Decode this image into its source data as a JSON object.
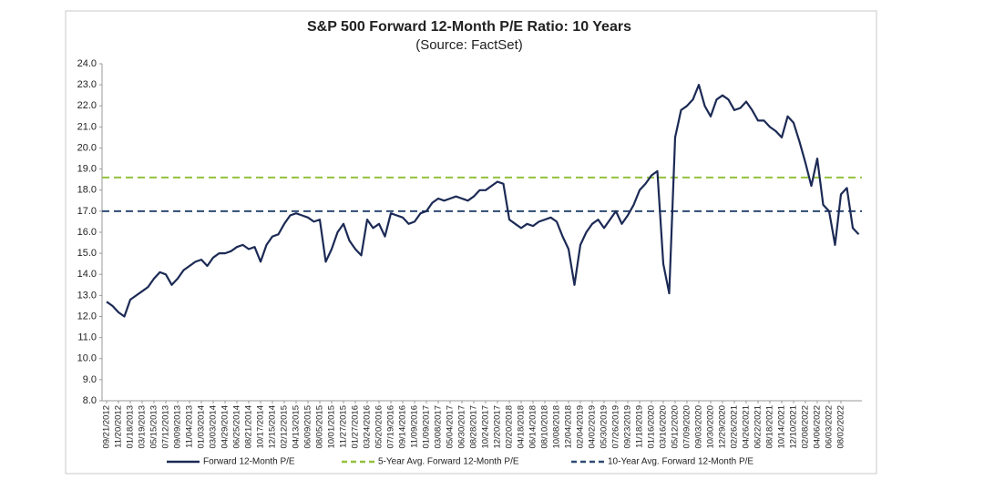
{
  "chart_data": {
    "type": "line",
    "title": "S&P 500 Forward 12-Month P/E Ratio: 10 Years",
    "subtitle": "(Source: FactSet)",
    "categories": [
      "09/21/2012",
      null,
      "11/20/2012",
      null,
      "01/18/2013",
      null,
      "03/19/2013",
      null,
      "05/15/2013",
      null,
      "07/12/2013",
      null,
      "09/09/2013",
      null,
      "11/04/2013",
      null,
      "01/03/2014",
      null,
      "03/03/2014",
      null,
      "04/29/2014",
      null,
      "06/25/2014",
      null,
      "08/21/2014",
      null,
      "10/17/2014",
      null,
      "12/15/2014",
      null,
      "02/12/2015",
      null,
      "04/13/2015",
      null,
      "06/09/2015",
      null,
      "08/05/2015",
      null,
      "10/01/2015",
      null,
      "11/27/2015",
      null,
      "01/27/2016",
      null,
      "03/24/2016",
      null,
      "05/20/2016",
      null,
      "07/19/2016",
      null,
      "09/14/2016",
      null,
      "11/09/2016",
      null,
      "01/09/2017",
      null,
      "03/08/2017",
      null,
      "05/04/2017",
      null,
      "06/30/2017",
      null,
      "08/28/2017",
      null,
      "10/24/2017",
      null,
      "12/20/2017",
      null,
      "02/20/2018",
      null,
      "04/18/2018",
      null,
      "06/14/2018",
      null,
      "08/10/2018",
      null,
      "10/08/2018",
      null,
      "12/04/2018",
      null,
      "02/04/2019",
      null,
      "04/02/2019",
      null,
      "05/30/2019",
      null,
      "07/26/2019",
      null,
      "09/23/2019",
      null,
      "11/18/2019",
      null,
      "01/16/2020",
      null,
      "03/16/2020",
      null,
      "05/12/2020",
      null,
      "07/09/2020",
      null,
      "09/03/2020",
      null,
      "10/30/2020",
      null,
      "12/29/2020",
      null,
      "02/26/2021",
      null,
      "04/26/2021",
      null,
      "06/22/2021",
      null,
      "08/18/2021",
      null,
      "10/14/2021",
      null,
      "12/10/2021",
      null,
      "02/08/2022",
      null,
      "04/06/2022",
      null,
      "06/03/2022",
      null,
      "08/02/2022",
      null,
      null,
      null
    ],
    "series": [
      {
        "name": "Forward 12-Month P/E",
        "color": "#1c2a55",
        "values": [
          12.7,
          12.5,
          12.2,
          12.0,
          12.8,
          13.0,
          13.2,
          13.4,
          13.8,
          14.1,
          14.0,
          13.5,
          13.8,
          14.2,
          14.4,
          14.6,
          14.7,
          14.4,
          14.8,
          15.0,
          15.0,
          15.1,
          15.3,
          15.4,
          15.2,
          15.3,
          14.6,
          15.4,
          15.8,
          15.9,
          16.4,
          16.8,
          16.9,
          16.8,
          16.7,
          16.5,
          16.6,
          14.6,
          15.2,
          16.0,
          16.4,
          15.6,
          15.2,
          14.9,
          16.6,
          16.2,
          16.4,
          15.8,
          16.9,
          16.8,
          16.7,
          16.4,
          16.5,
          16.9,
          17.0,
          17.4,
          17.6,
          17.5,
          17.6,
          17.7,
          17.6,
          17.5,
          17.7,
          18.0,
          18.0,
          18.2,
          18.4,
          18.3,
          16.6,
          16.4,
          16.2,
          16.4,
          16.3,
          16.5,
          16.6,
          16.7,
          16.5,
          15.8,
          15.2,
          13.5,
          15.4,
          16.0,
          16.4,
          16.6,
          16.2,
          16.6,
          17.0,
          16.4,
          16.8,
          17.3,
          18.0,
          18.3,
          18.7,
          18.9,
          14.5,
          13.1,
          20.5,
          21.8,
          22.0,
          22.3,
          23.0,
          22.0,
          21.5,
          22.3,
          22.5,
          22.3,
          21.8,
          21.9,
          22.2,
          21.8,
          21.3,
          21.3,
          21.0,
          20.8,
          20.5,
          21.5,
          21.2,
          20.3,
          19.3,
          18.2,
          19.5,
          17.3,
          17.0,
          15.4,
          17.8,
          18.1,
          16.2,
          15.9
        ]
      }
    ],
    "reference_lines": [
      {
        "name": "5-Year Avg. Forward 12-Month P/E",
        "color": "#92c13f",
        "value": 18.6
      },
      {
        "name": "10-Year Avg. Forward 12-Month P/E",
        "color": "#2e4a73",
        "value": 17.0
      }
    ],
    "ylim": [
      8,
      24
    ],
    "yticks": [
      {
        "value": 8,
        "label": "8.0"
      },
      {
        "value": 9,
        "label": "9.0"
      },
      {
        "value": 10,
        "label": "10.0"
      },
      {
        "value": 11,
        "label": "11.0"
      },
      {
        "value": 12,
        "label": "12.0"
      },
      {
        "value": 13,
        "label": "13.0"
      },
      {
        "value": 14,
        "label": "14.0"
      },
      {
        "value": 15,
        "label": "15.0"
      },
      {
        "value": 16,
        "label": "16.0"
      },
      {
        "value": 17,
        "label": "17.0"
      },
      {
        "value": 18,
        "label": "18.0"
      },
      {
        "value": 19,
        "label": "19.0"
      },
      {
        "value": 20,
        "label": "20.0"
      },
      {
        "value": 21,
        "label": "21.0"
      },
      {
        "value": 22,
        "label": "22.0"
      },
      {
        "value": 23,
        "label": "23.0"
      },
      {
        "value": 24,
        "label": "24.0"
      }
    ],
    "grid": false,
    "legend": "bottom"
  }
}
